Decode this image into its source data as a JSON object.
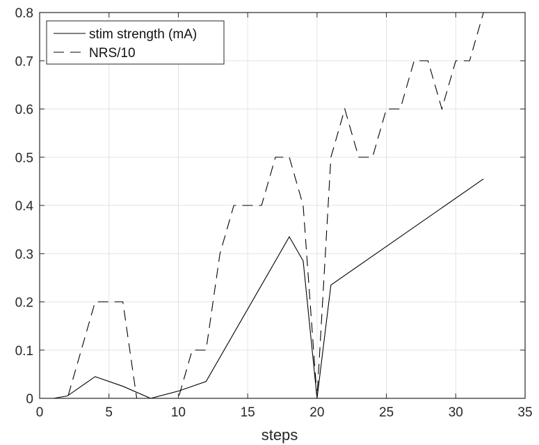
{
  "chart_data": {
    "type": "line",
    "title": "",
    "xlabel": "steps",
    "ylabel": "",
    "xlim": [
      0,
      35
    ],
    "ylim": [
      0,
      0.8
    ],
    "xticks": [
      0,
      5,
      10,
      15,
      20,
      25,
      30,
      35
    ],
    "yticks": [
      0,
      0.1,
      0.2,
      0.3,
      0.4,
      0.5,
      0.6,
      0.7,
      0.8
    ],
    "xtick_labels": [
      "0",
      "5",
      "10",
      "15",
      "20",
      "25",
      "30",
      "35"
    ],
    "ytick_labels": [
      "0",
      "0.1",
      "0.2",
      "0.3",
      "0.4",
      "0.5",
      "0.6",
      "0.7",
      "0.8"
    ],
    "grid": true,
    "legend_position": "top-left",
    "series": [
      {
        "name": "stim strength (mA)",
        "style": "solid",
        "color": "#000000",
        "x": [
          1,
          2,
          4,
          6,
          8,
          10,
          12,
          18,
          19,
          20,
          21,
          32
        ],
        "y": [
          0,
          0.005,
          0.045,
          0.025,
          0,
          0.015,
          0.035,
          0.335,
          0.285,
          0,
          0.235,
          0.455
        ]
      },
      {
        "name": "NRS/10",
        "style": "dashed",
        "color": "#000000",
        "x": [
          1,
          2,
          3,
          4,
          5,
          6,
          7,
          8,
          9,
          10,
          11,
          12,
          13,
          14,
          15,
          16,
          17,
          18,
          19,
          20,
          21,
          22,
          23,
          24,
          25,
          26,
          27,
          28,
          29,
          30,
          31,
          32
        ],
        "y": [
          0,
          0,
          0.1,
          0.2,
          0.2,
          0.2,
          0,
          0,
          0,
          0,
          0.1,
          0.1,
          0.3,
          0.4,
          0.4,
          0.4,
          0.5,
          0.5,
          0.4,
          0,
          0.5,
          0.6,
          0.5,
          0.5,
          0.6,
          0.6,
          0.7,
          0.7,
          0.6,
          0.7,
          0.7,
          0.8
        ]
      }
    ]
  }
}
